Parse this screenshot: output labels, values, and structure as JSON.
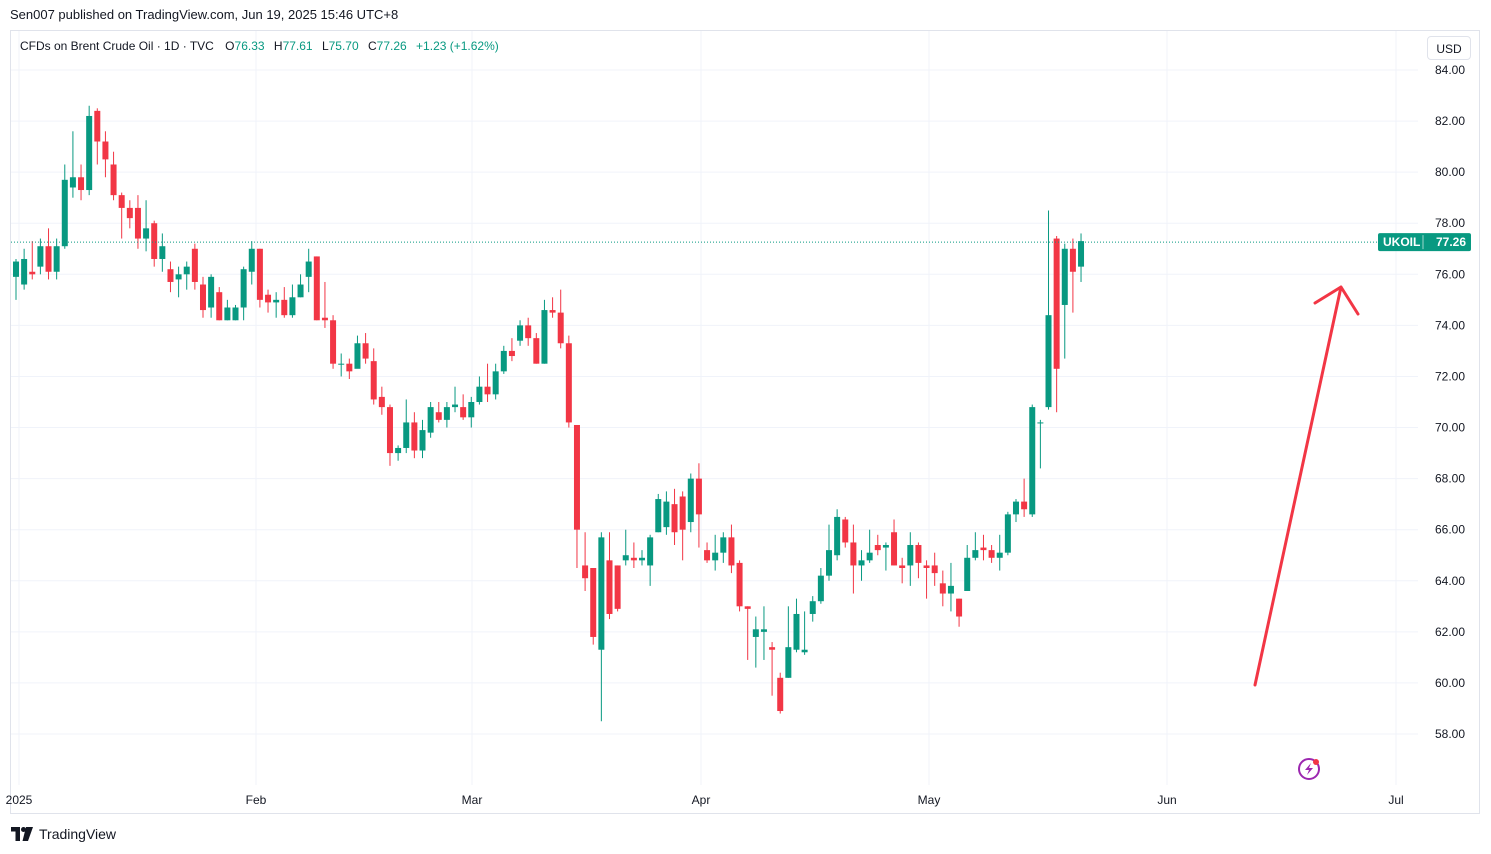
{
  "header": {
    "published": "Sen007 published on TradingView.com, Jun 19, 2025 15:46 UTC+8"
  },
  "legend": {
    "title": "CFDs on Brent Crude Oil · 1D · TVC",
    "open_label": "O",
    "open": "76.33",
    "high_label": "H",
    "high": "77.61",
    "low_label": "L",
    "low": "75.70",
    "close_label": "C",
    "close": "77.26",
    "change": "+1.23 (+1.62%)"
  },
  "currency": "USD",
  "price_tag": {
    "symbol": "UKOIL",
    "value": "77.26"
  },
  "footer": {
    "brand": "TradingView"
  },
  "colors": {
    "up": "#089981",
    "down": "#f23645",
    "arrow": "#f23645",
    "grid": "#f0f3fa"
  },
  "chart_data": {
    "type": "candlestick",
    "title": "CFDs on Brent Crude Oil",
    "y_ticks": [
      "58.00",
      "60.00",
      "62.00",
      "64.00",
      "66.00",
      "68.00",
      "70.00",
      "72.00",
      "74.00",
      "76.00",
      "78.00",
      "80.00",
      "82.00",
      "84.00"
    ],
    "ylim": [
      56.6,
      84.5
    ],
    "x_ticks": [
      "2025",
      "Feb",
      "Mar",
      "Apr",
      "May",
      "Jun",
      "Jul"
    ],
    "last_price": 77.26,
    "annotation": "up-arrow",
    "candles": [
      [
        75.9,
        76.5,
        75.0,
        76.6
      ],
      [
        75.6,
        76.6,
        75.4,
        77.0
      ],
      [
        76.1,
        76.0,
        75.8,
        77.3
      ],
      [
        76.3,
        77.1,
        76.0,
        77.4
      ],
      [
        77.1,
        76.1,
        75.8,
        77.8
      ],
      [
        76.1,
        77.1,
        75.8,
        77.4
      ],
      [
        77.1,
        79.7,
        77.0,
        80.3
      ],
      [
        79.4,
        79.8,
        79.0,
        81.6
      ],
      [
        79.8,
        79.3,
        78.9,
        80.3
      ],
      [
        79.3,
        82.2,
        79.1,
        82.6
      ],
      [
        82.4,
        81.2,
        80.3,
        82.5
      ],
      [
        81.2,
        80.5,
        79.8,
        81.6
      ],
      [
        80.3,
        79.1,
        78.9,
        80.8
      ],
      [
        79.1,
        78.6,
        77.4,
        79.2
      ],
      [
        78.6,
        78.2,
        77.8,
        78.9
      ],
      [
        78.6,
        77.4,
        77.0,
        79.1
      ],
      [
        77.4,
        77.8,
        76.9,
        78.9
      ],
      [
        78.0,
        76.6,
        76.3,
        78.1
      ],
      [
        76.6,
        77.1,
        76.1,
        77.6
      ],
      [
        76.2,
        75.7,
        75.3,
        76.5
      ],
      [
        75.8,
        76.0,
        75.1,
        76.3
      ],
      [
        76.0,
        76.3,
        75.4,
        76.5
      ],
      [
        77.0,
        75.7,
        75.4,
        77.2
      ],
      [
        75.6,
        74.6,
        74.3,
        75.9
      ],
      [
        74.7,
        75.9,
        74.3,
        76.0
      ],
      [
        75.3,
        74.2,
        74.2,
        75.5
      ],
      [
        74.2,
        74.7,
        74.2,
        75.0
      ],
      [
        74.2,
        74.7,
        74.2,
        74.8
      ],
      [
        74.7,
        76.2,
        74.2,
        76.3
      ],
      [
        76.1,
        77.0,
        75.6,
        77.3
      ],
      [
        77.0,
        75.0,
        74.7,
        77.0
      ],
      [
        75.2,
        74.9,
        74.5,
        75.4
      ],
      [
        74.9,
        75.0,
        74.3,
        75.3
      ],
      [
        75.0,
        74.4,
        74.3,
        75.5
      ],
      [
        74.4,
        75.1,
        74.3,
        75.6
      ],
      [
        75.1,
        75.6,
        75.1,
        76.0
      ],
      [
        75.9,
        76.5,
        75.3,
        77.0
      ],
      [
        76.7,
        74.2,
        74.2,
        76.7
      ],
      [
        74.3,
        74.2,
        73.9,
        75.7
      ],
      [
        74.2,
        72.5,
        72.3,
        74.4
      ],
      [
        72.5,
        72.5,
        72.0,
        72.9
      ],
      [
        72.5,
        72.2,
        71.9,
        72.7
      ],
      [
        72.3,
        73.3,
        72.4,
        73.6
      ],
      [
        73.3,
        72.7,
        72.5,
        73.7
      ],
      [
        72.6,
        71.1,
        70.9,
        73.1
      ],
      [
        71.2,
        70.8,
        70.5,
        71.6
      ],
      [
        70.8,
        69.0,
        68.5,
        70.9
      ],
      [
        69.0,
        69.2,
        68.7,
        69.3
      ],
      [
        69.2,
        70.2,
        69.0,
        71.1
      ],
      [
        70.2,
        69.1,
        68.8,
        70.6
      ],
      [
        69.1,
        69.9,
        68.8,
        70.3
      ],
      [
        69.8,
        70.8,
        69.6,
        71.0
      ],
      [
        70.6,
        70.3,
        70.2,
        71.0
      ],
      [
        70.3,
        70.8,
        70.0,
        71.0
      ],
      [
        70.8,
        70.9,
        70.6,
        71.6
      ],
      [
        70.8,
        70.4,
        70.3,
        71.3
      ],
      [
        70.4,
        71.0,
        70.0,
        71.2
      ],
      [
        71.0,
        71.6,
        70.9,
        72.0
      ],
      [
        71.6,
        71.3,
        71.0,
        72.5
      ],
      [
        71.3,
        72.2,
        71.1,
        72.5
      ],
      [
        72.2,
        73.0,
        72.1,
        73.2
      ],
      [
        73.0,
        72.8,
        72.6,
        73.5
      ],
      [
        73.4,
        74.0,
        73.2,
        74.2
      ],
      [
        74.0,
        73.5,
        73.2,
        74.3
      ],
      [
        73.5,
        72.5,
        72.5,
        73.7
      ],
      [
        72.5,
        74.6,
        72.5,
        75.0
      ],
      [
        74.6,
        74.5,
        74.3,
        75.1
      ],
      [
        74.5,
        73.3,
        73.1,
        75.4
      ],
      [
        73.3,
        70.2,
        70.0,
        73.6
      ],
      [
        70.1,
        66.0,
        64.5,
        70.1
      ],
      [
        64.6,
        64.1,
        63.6,
        65.9
      ],
      [
        64.5,
        61.8,
        61.5,
        64.5
      ],
      [
        61.3,
        65.7,
        58.5,
        65.9
      ],
      [
        64.8,
        62.7,
        62.5,
        65.9
      ],
      [
        64.6,
        62.9,
        62.8,
        64.6
      ],
      [
        64.8,
        65.0,
        64.6,
        66.0
      ],
      [
        64.9,
        64.8,
        64.5,
        65.5
      ],
      [
        64.8,
        64.9,
        64.6,
        65.2
      ],
      [
        64.6,
        65.7,
        63.8,
        65.8
      ],
      [
        65.9,
        67.2,
        65.9,
        67.4
      ],
      [
        66.1,
        67.1,
        65.8,
        67.5
      ],
      [
        67.0,
        65.9,
        65.4,
        67.6
      ],
      [
        67.3,
        66.0,
        64.8,
        67.5
      ],
      [
        66.3,
        68.0,
        65.9,
        68.2
      ],
      [
        68.0,
        66.6,
        65.3,
        68.6
      ],
      [
        65.2,
        64.8,
        64.7,
        65.5
      ],
      [
        64.8,
        65.1,
        64.4,
        65.8
      ],
      [
        65.1,
        65.7,
        64.7,
        65.9
      ],
      [
        65.7,
        64.6,
        64.3,
        66.2
      ],
      [
        64.7,
        63.0,
        62.8,
        64.8
      ],
      [
        63.0,
        62.9,
        60.9,
        63.0
      ],
      [
        61.8,
        62.1,
        60.6,
        62.6
      ],
      [
        62.0,
        62.1,
        60.9,
        63.0
      ],
      [
        61.4,
        61.3,
        59.5,
        61.6
      ],
      [
        60.2,
        58.9,
        58.8,
        60.4
      ],
      [
        60.2,
        61.4,
        60.2,
        63.0
      ],
      [
        61.3,
        62.7,
        61.2,
        63.3
      ],
      [
        61.2,
        61.3,
        61.1,
        62.8
      ],
      [
        62.7,
        63.2,
        62.4,
        63.4
      ],
      [
        63.2,
        64.2,
        63.1,
        64.5
      ],
      [
        64.2,
        65.2,
        64.0,
        66.2
      ],
      [
        65.0,
        66.5,
        64.8,
        66.8
      ],
      [
        66.4,
        65.5,
        65.3,
        66.5
      ],
      [
        65.5,
        64.6,
        63.5,
        66.2
      ],
      [
        64.6,
        64.8,
        64.0,
        65.2
      ],
      [
        64.8,
        65.1,
        64.7,
        66.0
      ],
      [
        65.4,
        65.2,
        65.0,
        65.8
      ],
      [
        65.3,
        65.4,
        64.4,
        65.5
      ],
      [
        65.9,
        64.6,
        64.6,
        66.4
      ],
      [
        64.6,
        64.5,
        63.9,
        64.9
      ],
      [
        64.6,
        65.4,
        63.8,
        65.9
      ],
      [
        65.4,
        64.7,
        64.1,
        65.5
      ],
      [
        64.6,
        64.5,
        63.3,
        64.8
      ],
      [
        64.6,
        64.3,
        63.8,
        65.1
      ],
      [
        63.9,
        63.5,
        63.0,
        64.4
      ],
      [
        63.5,
        63.8,
        62.8,
        64.7
      ],
      [
        63.3,
        62.6,
        62.2,
        63.3
      ],
      [
        63.6,
        64.9,
        63.6,
        65.4
      ],
      [
        64.9,
        65.2,
        64.8,
        65.9
      ],
      [
        65.3,
        65.2,
        64.8,
        65.8
      ],
      [
        65.2,
        64.9,
        64.7,
        65.4
      ],
      [
        64.9,
        65.1,
        64.4,
        65.8
      ],
      [
        65.1,
        66.6,
        65.0,
        66.7
      ],
      [
        66.6,
        67.1,
        66.3,
        67.2
      ],
      [
        67.1,
        66.8,
        66.5,
        68.0
      ],
      [
        66.6,
        70.8,
        66.5,
        70.9
      ],
      [
        70.2,
        70.2,
        68.4,
        70.3
      ],
      [
        70.8,
        74.4,
        70.7,
        78.5
      ],
      [
        77.4,
        72.3,
        70.6,
        77.5
      ],
      [
        74.8,
        77.0,
        72.7,
        77.2
      ],
      [
        77.0,
        76.1,
        74.5,
        77.4
      ],
      [
        76.3,
        77.3,
        75.7,
        77.6
      ]
    ]
  }
}
